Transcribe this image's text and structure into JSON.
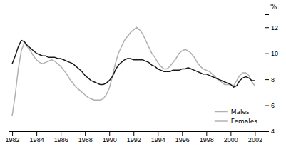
{
  "chart_data": {
    "type": "line",
    "x": [
      1982.0,
      1982.25,
      1982.5,
      1982.75,
      1983.0,
      1983.25,
      1983.5,
      1983.75,
      1984.0,
      1984.25,
      1984.5,
      1984.75,
      1985.0,
      1985.25,
      1985.5,
      1985.75,
      1986.0,
      1986.25,
      1986.5,
      1986.75,
      1987.0,
      1987.25,
      1987.5,
      1987.75,
      1988.0,
      1988.25,
      1988.5,
      1988.75,
      1989.0,
      1989.25,
      1989.5,
      1989.75,
      1990.0,
      1990.25,
      1990.5,
      1990.75,
      1991.0,
      1991.25,
      1991.5,
      1991.75,
      1992.0,
      1992.25,
      1992.5,
      1992.75,
      1993.0,
      1993.25,
      1993.5,
      1993.75,
      1994.0,
      1994.25,
      1994.5,
      1994.75,
      1995.0,
      1995.25,
      1995.5,
      1995.75,
      1996.0,
      1996.25,
      1996.5,
      1996.75,
      1997.0,
      1997.25,
      1997.5,
      1997.75,
      1998.0,
      1998.25,
      1998.5,
      1998.75,
      1999.0,
      1999.25,
      1999.5,
      1999.75,
      2000.0,
      2000.25,
      2000.5,
      2000.75,
      2001.0,
      2001.25,
      2001.5,
      2001.75,
      2002.0
    ],
    "series": [
      {
        "name": "Males",
        "color": "#b0b0b0",
        "values": [
          5.2,
          6.8,
          8.8,
          10.2,
          10.8,
          10.5,
          10.2,
          9.8,
          9.5,
          9.3,
          9.2,
          9.3,
          9.4,
          9.5,
          9.4,
          9.2,
          9.0,
          8.7,
          8.4,
          8.0,
          7.7,
          7.4,
          7.2,
          7.0,
          6.8,
          6.6,
          6.5,
          6.4,
          6.4,
          6.4,
          6.5,
          6.8,
          7.3,
          8.2,
          9.2,
          10.0,
          10.5,
          11.0,
          11.3,
          11.6,
          11.8,
          12.0,
          11.8,
          11.5,
          11.0,
          10.5,
          10.0,
          9.7,
          9.3,
          9.0,
          8.8,
          8.8,
          9.0,
          9.3,
          9.6,
          10.0,
          10.2,
          10.3,
          10.2,
          10.0,
          9.7,
          9.3,
          9.0,
          8.8,
          8.7,
          8.6,
          8.4,
          8.2,
          7.9,
          7.8,
          7.6,
          7.6,
          7.6,
          7.5,
          7.9,
          8.3,
          8.5,
          8.5,
          8.3,
          7.8,
          7.5
        ]
      },
      {
        "name": "Females",
        "color": "#1a1a1a",
        "values": [
          9.2,
          9.8,
          10.5,
          11.0,
          10.9,
          10.6,
          10.4,
          10.2,
          10.0,
          9.9,
          9.8,
          9.8,
          9.7,
          9.7,
          9.7,
          9.6,
          9.6,
          9.5,
          9.4,
          9.3,
          9.2,
          9.0,
          8.8,
          8.6,
          8.3,
          8.1,
          7.9,
          7.8,
          7.7,
          7.6,
          7.6,
          7.7,
          7.9,
          8.2,
          8.7,
          9.1,
          9.3,
          9.5,
          9.6,
          9.6,
          9.5,
          9.5,
          9.5,
          9.5,
          9.4,
          9.3,
          9.1,
          9.0,
          8.8,
          8.7,
          8.6,
          8.6,
          8.6,
          8.7,
          8.7,
          8.7,
          8.8,
          8.8,
          8.9,
          8.8,
          8.7,
          8.6,
          8.5,
          8.4,
          8.4,
          8.3,
          8.2,
          8.1,
          8.0,
          7.9,
          7.8,
          7.7,
          7.6,
          7.4,
          7.5,
          7.9,
          8.1,
          8.2,
          8.1,
          7.9,
          7.9
        ]
      }
    ],
    "ylabel": "%",
    "xlim": [
      1981.7,
      2002.8
    ],
    "ylim": [
      4,
      13
    ],
    "xticks": [
      1982,
      1984,
      1986,
      1988,
      1990,
      1992,
      1994,
      1996,
      1998,
      2000,
      2002
    ],
    "yticks": [
      4,
      6,
      8,
      10,
      12
    ],
    "legend": "lower right",
    "grid": false
  }
}
